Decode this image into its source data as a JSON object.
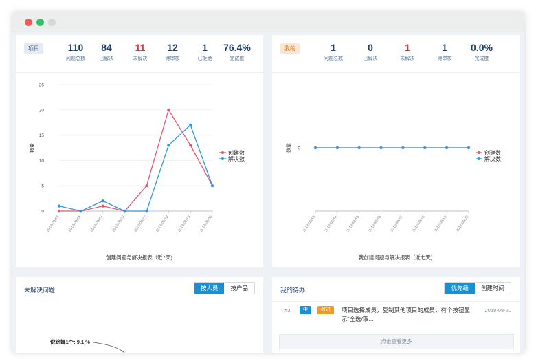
{
  "window": {
    "controls": [
      "close",
      "maximize",
      "minimize"
    ]
  },
  "project_panel": {
    "tag": "项目",
    "stats": [
      {
        "value": "110",
        "label": "问题总数"
      },
      {
        "value": "84",
        "label": "已解决"
      },
      {
        "value": "11",
        "label": "未解决"
      },
      {
        "value": "12",
        "label": "待审核"
      },
      {
        "value": "1",
        "label": "已拒绝"
      },
      {
        "value": "76.4%",
        "label": "完成度"
      }
    ]
  },
  "my_panel": {
    "tag": "我的",
    "stats": [
      {
        "value": "1",
        "label": "问题总数"
      },
      {
        "value": "0",
        "label": "已解决"
      },
      {
        "value": "1",
        "label": "未解决"
      },
      {
        "value": "1",
        "label": "待审核"
      },
      {
        "value": "0.0%",
        "label": "完成度"
      }
    ]
  },
  "chart_data": [
    {
      "type": "line",
      "title": "创建问题与解决报表（近7天)",
      "xlabel": "",
      "ylabel": "数量",
      "categories": [
        "2018/09/13",
        "2018/09/14",
        "2018/09/15",
        "2018/09/16",
        "2018/09/17",
        "2018/09/18",
        "2018/09/19",
        "2018/09/20"
      ],
      "yticks": [
        "0",
        "5",
        "10",
        "15",
        "20",
        "25"
      ],
      "ylim": [
        0,
        25
      ],
      "legend_position": "right",
      "series": [
        {
          "name": "创建数",
          "color": "#e15770",
          "values": [
            0,
            0,
            1,
            0,
            5,
            20,
            13,
            5
          ]
        },
        {
          "name": "解决数",
          "color": "#2e97dd",
          "values": [
            1,
            0,
            2,
            0,
            0,
            13,
            17,
            5
          ]
        }
      ]
    },
    {
      "type": "line",
      "title": "我创建问题与解决报表（近七天)",
      "xlabel": "",
      "ylabel": "数量",
      "categories": [
        "2018/09/13",
        "2018/09/14",
        "2018/09/15",
        "2018/09/16",
        "2018/09/17",
        "2018/09/18",
        "2018/09/19",
        "2018/09/20"
      ],
      "yticks": [
        "0"
      ],
      "legend_position": "right",
      "series": [
        {
          "name": "创建数",
          "color": "#e15770",
          "values": [
            0,
            0,
            0,
            0,
            0,
            0,
            0,
            0
          ]
        },
        {
          "name": "解决数",
          "color": "#2e97dd",
          "values": [
            0,
            0,
            0,
            0,
            0,
            0,
            0,
            0
          ]
        }
      ]
    }
  ],
  "unresolved_panel": {
    "title": "未解决问题",
    "tabs": [
      "按人员",
      "按产品"
    ],
    "active_tab": "按人员",
    "pie_label": "倪铭娜1个: 9.1 %"
  },
  "todo_panel": {
    "title": "我的待办",
    "tabs": [
      "优先级",
      "创建时间"
    ],
    "active_tab": "优先级",
    "items": [
      {
        "id": "#3",
        "priority": "中",
        "type": "改进",
        "text": "项目选择成员，复制其他项目的成员，有个按钮显示\"全选/取...",
        "date": "2018-08-20"
      }
    ],
    "more_label": "点击查看更多"
  }
}
